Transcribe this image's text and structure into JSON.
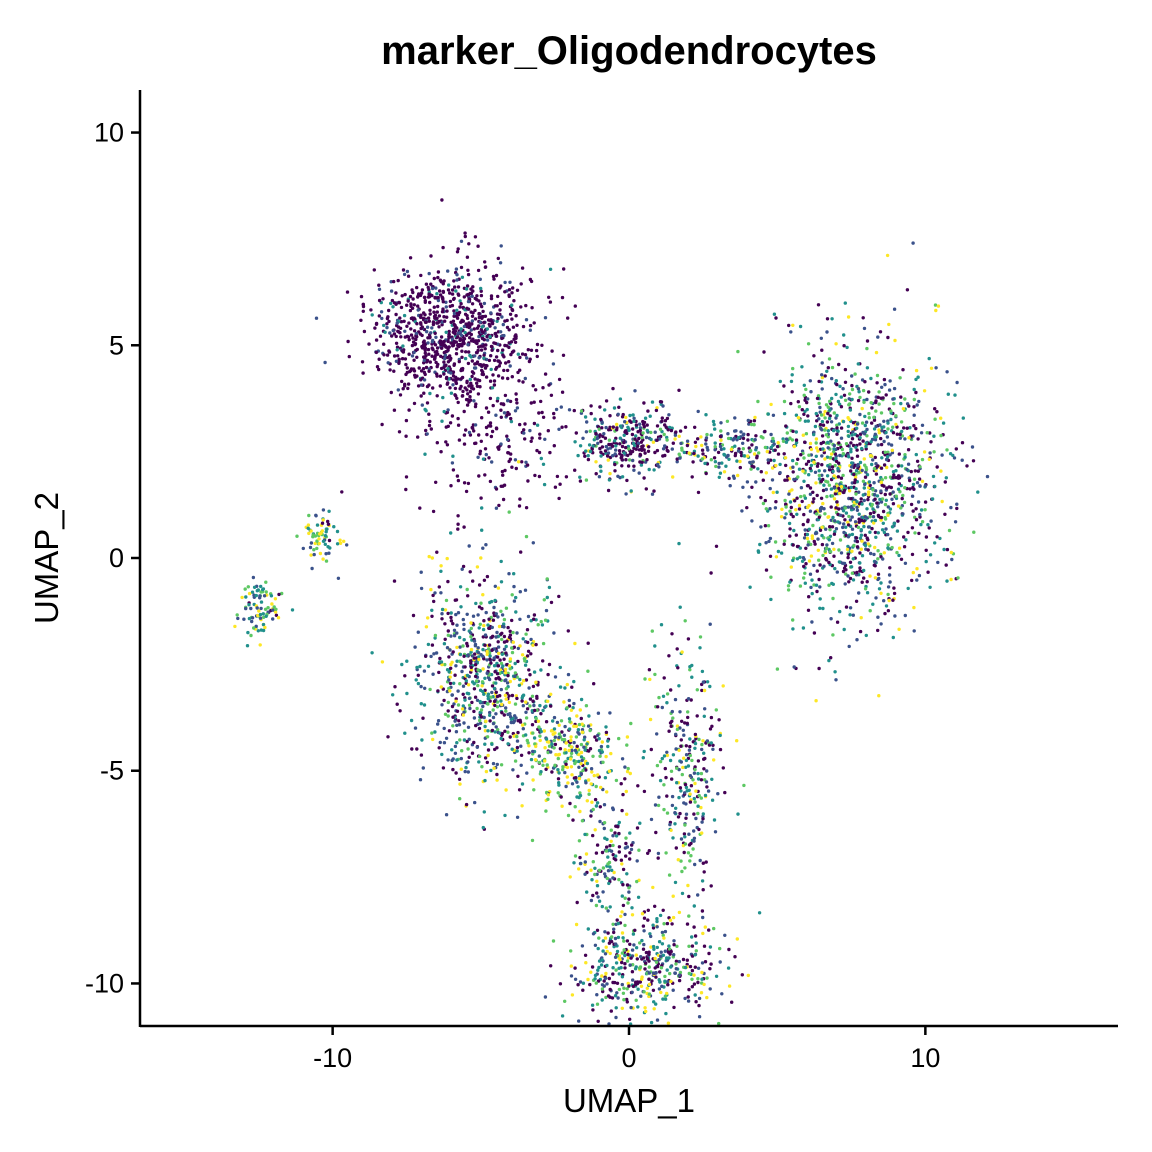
{
  "chart_data": {
    "type": "scatter",
    "title": "marker_Oligodendrocytes",
    "xlabel": "UMAP_1",
    "ylabel": "UMAP_2",
    "xlim": [
      -16.5,
      16.5
    ],
    "ylim": [
      -11,
      11
    ],
    "x_ticks": [
      -10,
      0,
      10
    ],
    "x_tick_labels": [
      "-10",
      "0",
      "10"
    ],
    "y_ticks": [
      -10,
      -5,
      0,
      5,
      10
    ],
    "y_tick_labels": [
      "-10",
      "-5",
      "0",
      "5",
      "10"
    ],
    "grid": false,
    "legend": "none",
    "color_scale": "viridis",
    "colors": {
      "low": "#440154",
      "mid_low": "#3B528B",
      "mid": "#21908C",
      "mid_high": "#5DC863",
      "high": "#FDE725"
    },
    "clusters": [
      {
        "cluster": "top-arc",
        "center": [
          -6.0,
          5.3
        ],
        "spread": [
          1.3,
          0.8
        ],
        "expression": "low"
      },
      {
        "cluster": "top-arc-tail",
        "center": [
          -4.5,
          3.2
        ],
        "spread": [
          1.5,
          1.0
        ],
        "expression": "low"
      },
      {
        "cluster": "center-neck",
        "center": [
          0.0,
          2.7
        ],
        "spread": [
          0.9,
          0.5
        ],
        "expression": "low-mid"
      },
      {
        "cluster": "bridge",
        "center": [
          3.3,
          2.6
        ],
        "spread": [
          1.3,
          0.3
        ],
        "expression": "mixed"
      },
      {
        "cluster": "right-blob",
        "center": [
          7.5,
          1.8
        ],
        "spread": [
          1.5,
          1.5
        ],
        "expression": "mixed"
      },
      {
        "cluster": "left-arm",
        "center": [
          -4.8,
          -2.8
        ],
        "spread": [
          1.2,
          1.2
        ],
        "expression": "mixed"
      },
      {
        "cluster": "left-arm-lower",
        "center": [
          -2.0,
          -4.5
        ],
        "spread": [
          0.9,
          0.6
        ],
        "expression": "high"
      },
      {
        "cluster": "right-stem",
        "center": [
          2.0,
          -5.0
        ],
        "spread": [
          0.6,
          1.5
        ],
        "expression": "mixed"
      },
      {
        "cluster": "stem-middle",
        "center": [
          -0.7,
          -7.0
        ],
        "spread": [
          0.6,
          0.8
        ],
        "expression": "mixed"
      },
      {
        "cluster": "bottom",
        "center": [
          0.5,
          -9.6
        ],
        "spread": [
          1.2,
          0.6
        ],
        "expression": "mixed"
      },
      {
        "cluster": "small-left",
        "center": [
          -10.4,
          0.5
        ],
        "spread": [
          0.3,
          0.3
        ],
        "expression": "mid-high"
      },
      {
        "cluster": "far-left",
        "center": [
          -12.4,
          -1.2
        ],
        "spread": [
          0.35,
          0.35
        ],
        "expression": "mid-high"
      }
    ]
  }
}
